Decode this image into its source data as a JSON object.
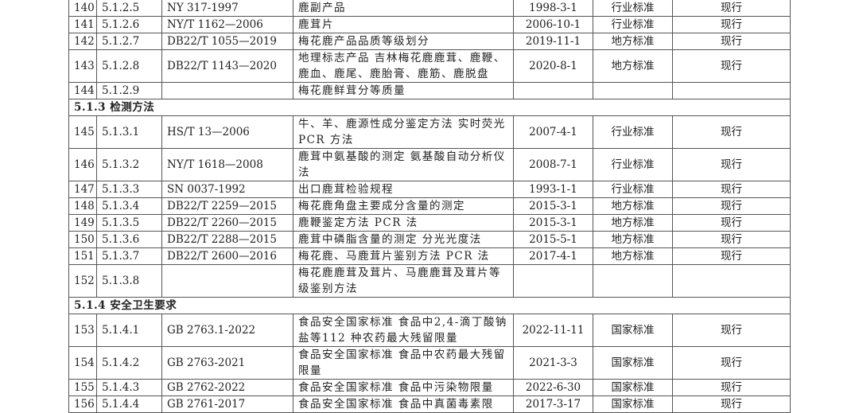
{
  "rows": [
    {
      "no": "140",
      "code": "5.1.2.5",
      "std": "NY 317-1997",
      "name": "鹿副产品",
      "date": "1998-3-1",
      "type": "行业标准",
      "status": "现行"
    },
    {
      "no": "141",
      "code": "5.1.2.6",
      "std": "NY/T 1162—2006",
      "name": "鹿茸片",
      "date": "2006-10-1",
      "type": "行业标准",
      "status": "现行"
    },
    {
      "no": "142",
      "code": "5.1.2.7",
      "std": "DB22/T 1055—2019",
      "name": "梅花鹿产品品质等级划分",
      "date": "2019-11-1",
      "type": "地方标准",
      "status": "现行"
    },
    {
      "no": "143",
      "code": "5.1.2.8",
      "std": "DB22/T 1143—2020",
      "name": "地理标志产品 吉林梅花鹿鹿茸、鹿鞭、鹿血、鹿尾、鹿胎膏、鹿筋、鹿脱盘",
      "date": "2020-8-1",
      "type": "地方标准",
      "status": "现行",
      "tall": true
    },
    {
      "no": "144",
      "code": "5.1.2.9",
      "std": "",
      "name": "梅花鹿鲜茸分等质量",
      "date": "",
      "type": "",
      "status": ""
    },
    {
      "section": "5.1.3 检测方法"
    },
    {
      "no": "145",
      "code": "5.1.3.1",
      "std": "HS/T 13—2006",
      "name": "牛、羊、鹿源性成分鉴定方法 实时荧光PCR 方法",
      "date": "2007-4-1",
      "type": "行业标准",
      "status": "现行",
      "tall": true
    },
    {
      "no": "146",
      "code": "5.1.3.2",
      "std": "NY/T 1618—2008",
      "name": "鹿茸中氨基酸的测定 氨基酸自动分析仪法",
      "date": "2008-7-1",
      "type": "行业标准",
      "status": "现行",
      "tall": true
    },
    {
      "no": "147",
      "code": "5.1.3.3",
      "std": "SN 0037-1992",
      "name": "出口鹿茸检验规程",
      "date": "1993-1-1",
      "type": "行业标准",
      "status": "现行"
    },
    {
      "no": "148",
      "code": "5.1.3.4",
      "std": "DB22/T 2259—2015",
      "name": "梅花鹿角盘主要成分含量的测定",
      "date": "2015-3-1",
      "type": "地方标准",
      "status": "现行"
    },
    {
      "no": "149",
      "code": "5.1.3.5",
      "std": "DB22/T 2260—2015",
      "name": "鹿鞭鉴定方法 PCR 法",
      "date": "2015-3-1",
      "type": "地方标准",
      "status": "现行"
    },
    {
      "no": "150",
      "code": "5.1.3.6",
      "std": "DB22/T 2288—2015",
      "name": "鹿茸中磷脂含量的测定 分光光度法",
      "date": "2015-5-1",
      "type": "地方标准",
      "status": "现行"
    },
    {
      "no": "151",
      "code": "5.1.3.7",
      "std": "DB22/T 2600—2016",
      "name": "梅花鹿、马鹿茸片鉴别方法 PCR 法",
      "date": "2017-4-1",
      "type": "地方标准",
      "status": "现行"
    },
    {
      "no": "152",
      "code": "5.1.3.8",
      "std": "",
      "name": "梅花鹿鹿茸及茸片、马鹿鹿茸及茸片等级鉴别方法",
      "date": "",
      "type": "",
      "status": "",
      "tall": true
    },
    {
      "section": "5.1.4 安全卫生要求"
    },
    {
      "no": "153",
      "code": "5.1.4.1",
      "std": "GB 2763.1-2022",
      "name": "食品安全国家标准 食品中2,4-滴丁酸钠盐等112 种农药最大残留限量",
      "date": "2022-11-11",
      "type": "国家标准",
      "status": "现行",
      "tall": true
    },
    {
      "no": "154",
      "code": "5.1.4.2",
      "std": "GB 2763-2021",
      "name": "食品安全国家标准 食品中农药最大残留限量",
      "date": "2021-3-3",
      "type": "国家标准",
      "status": "现行",
      "tall": true
    },
    {
      "no": "155",
      "code": "5.1.4.3",
      "std": "GB 2762-2022",
      "name": "食品安全国家标准 食品中污染物限量",
      "date": "2022-6-30",
      "type": "国家标准",
      "status": "现行"
    },
    {
      "no": "156",
      "code": "5.1.4.4",
      "std": "GB 2761-2017",
      "name": "食品安全国家标准 食品中真菌毒素限",
      "date": "2017-3-17",
      "type": "国家标准",
      "status": "现行"
    }
  ]
}
